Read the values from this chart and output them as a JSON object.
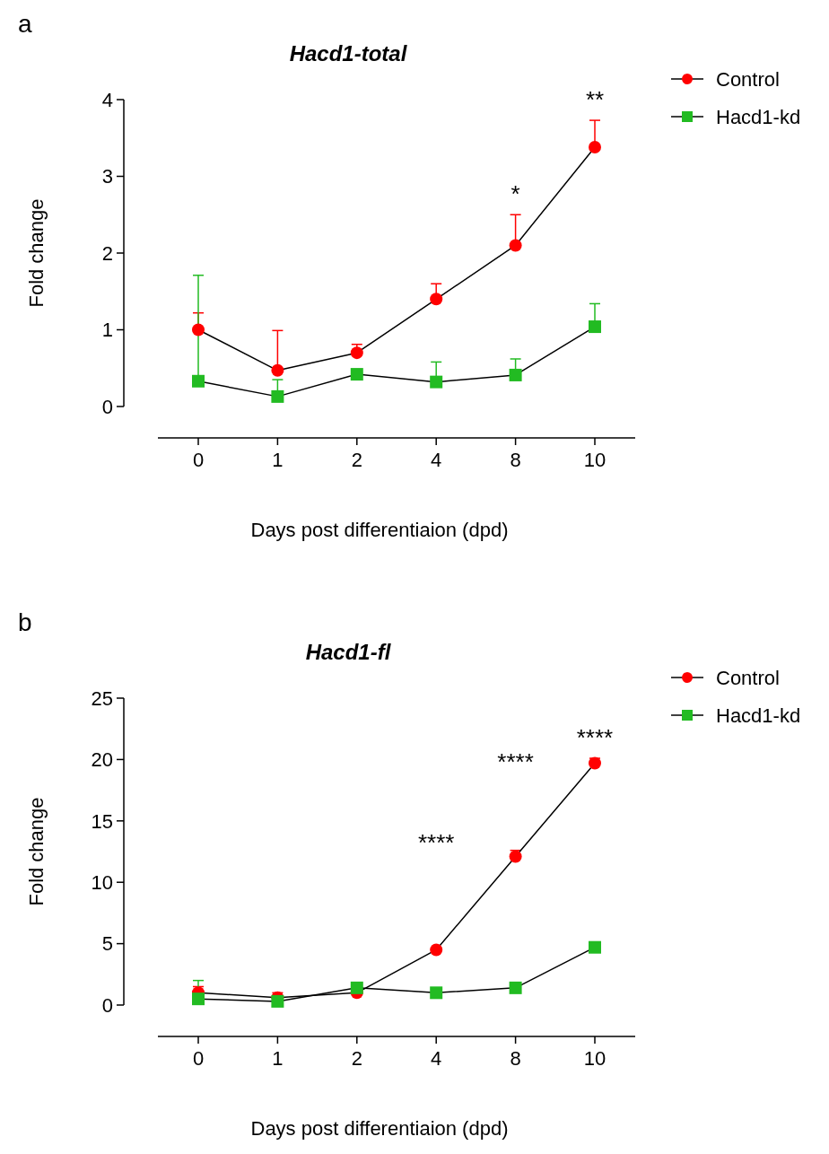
{
  "chart_data": [
    {
      "type": "line",
      "title": "Hacd1-total",
      "xlabel": "Days post differentiaion (dpd)",
      "ylabel": "Fold change",
      "categories": [
        "0",
        "1",
        "2",
        "4",
        "8",
        "10"
      ],
      "ylim": [
        0,
        4
      ],
      "yticks": [
        0,
        1,
        2,
        3,
        4
      ],
      "legend": "top right",
      "grid": false,
      "series": [
        {
          "name": "Control",
          "color": "#ff0000",
          "marker": "circle",
          "values": [
            1.0,
            0.47,
            0.7,
            1.4,
            2.1,
            3.38
          ],
          "errors": [
            [
              1.0,
              1.22
            ],
            [
              0.47,
              0.99
            ],
            [
              0.7,
              0.81
            ],
            [
              1.4,
              1.6
            ],
            [
              2.1,
              2.5
            ],
            [
              3.38,
              3.73
            ]
          ]
        },
        {
          "name": "Hacd1-kd",
          "color": "#22bb22",
          "marker": "square",
          "values": [
            0.33,
            0.13,
            0.42,
            0.32,
            0.41,
            1.04
          ],
          "errors": [
            [
              0.33,
              1.71
            ],
            [
              0.13,
              0.35
            ],
            null,
            [
              0.32,
              0.58
            ],
            [
              0.41,
              0.62
            ],
            [
              1.04,
              1.34
            ]
          ]
        }
      ],
      "annotations": [
        "a",
        "*",
        "**"
      ]
    },
    {
      "type": "line",
      "title": "Hacd1-fl",
      "xlabel": "Days post differentiaion (dpd)",
      "ylabel": "Fold change",
      "categories": [
        "0",
        "1",
        "2",
        "4",
        "8",
        "10"
      ],
      "ylim": [
        0,
        25
      ],
      "yticks": [
        0,
        5,
        10,
        15,
        20,
        25
      ],
      "legend": "top right",
      "grid": false,
      "series": [
        {
          "name": "Control",
          "color": "#ff0000",
          "marker": "circle",
          "values": [
            1.0,
            0.6,
            1.0,
            4.5,
            12.1,
            19.7
          ],
          "errors": [
            [
              1.0,
              1.5
            ],
            [
              0.6,
              1.0
            ],
            null,
            null,
            [
              12.1,
              12.6
            ],
            [
              19.7,
              20.1
            ]
          ]
        },
        {
          "name": "Hacd1-kd",
          "color": "#22bb22",
          "marker": "square",
          "values": [
            0.5,
            0.3,
            1.4,
            1.0,
            1.4,
            4.7
          ],
          "errors": [
            [
              0.5,
              2.0
            ],
            null,
            null,
            null,
            null,
            null
          ]
        }
      ],
      "annotations": [
        "b",
        "****",
        "****",
        "****"
      ]
    }
  ]
}
